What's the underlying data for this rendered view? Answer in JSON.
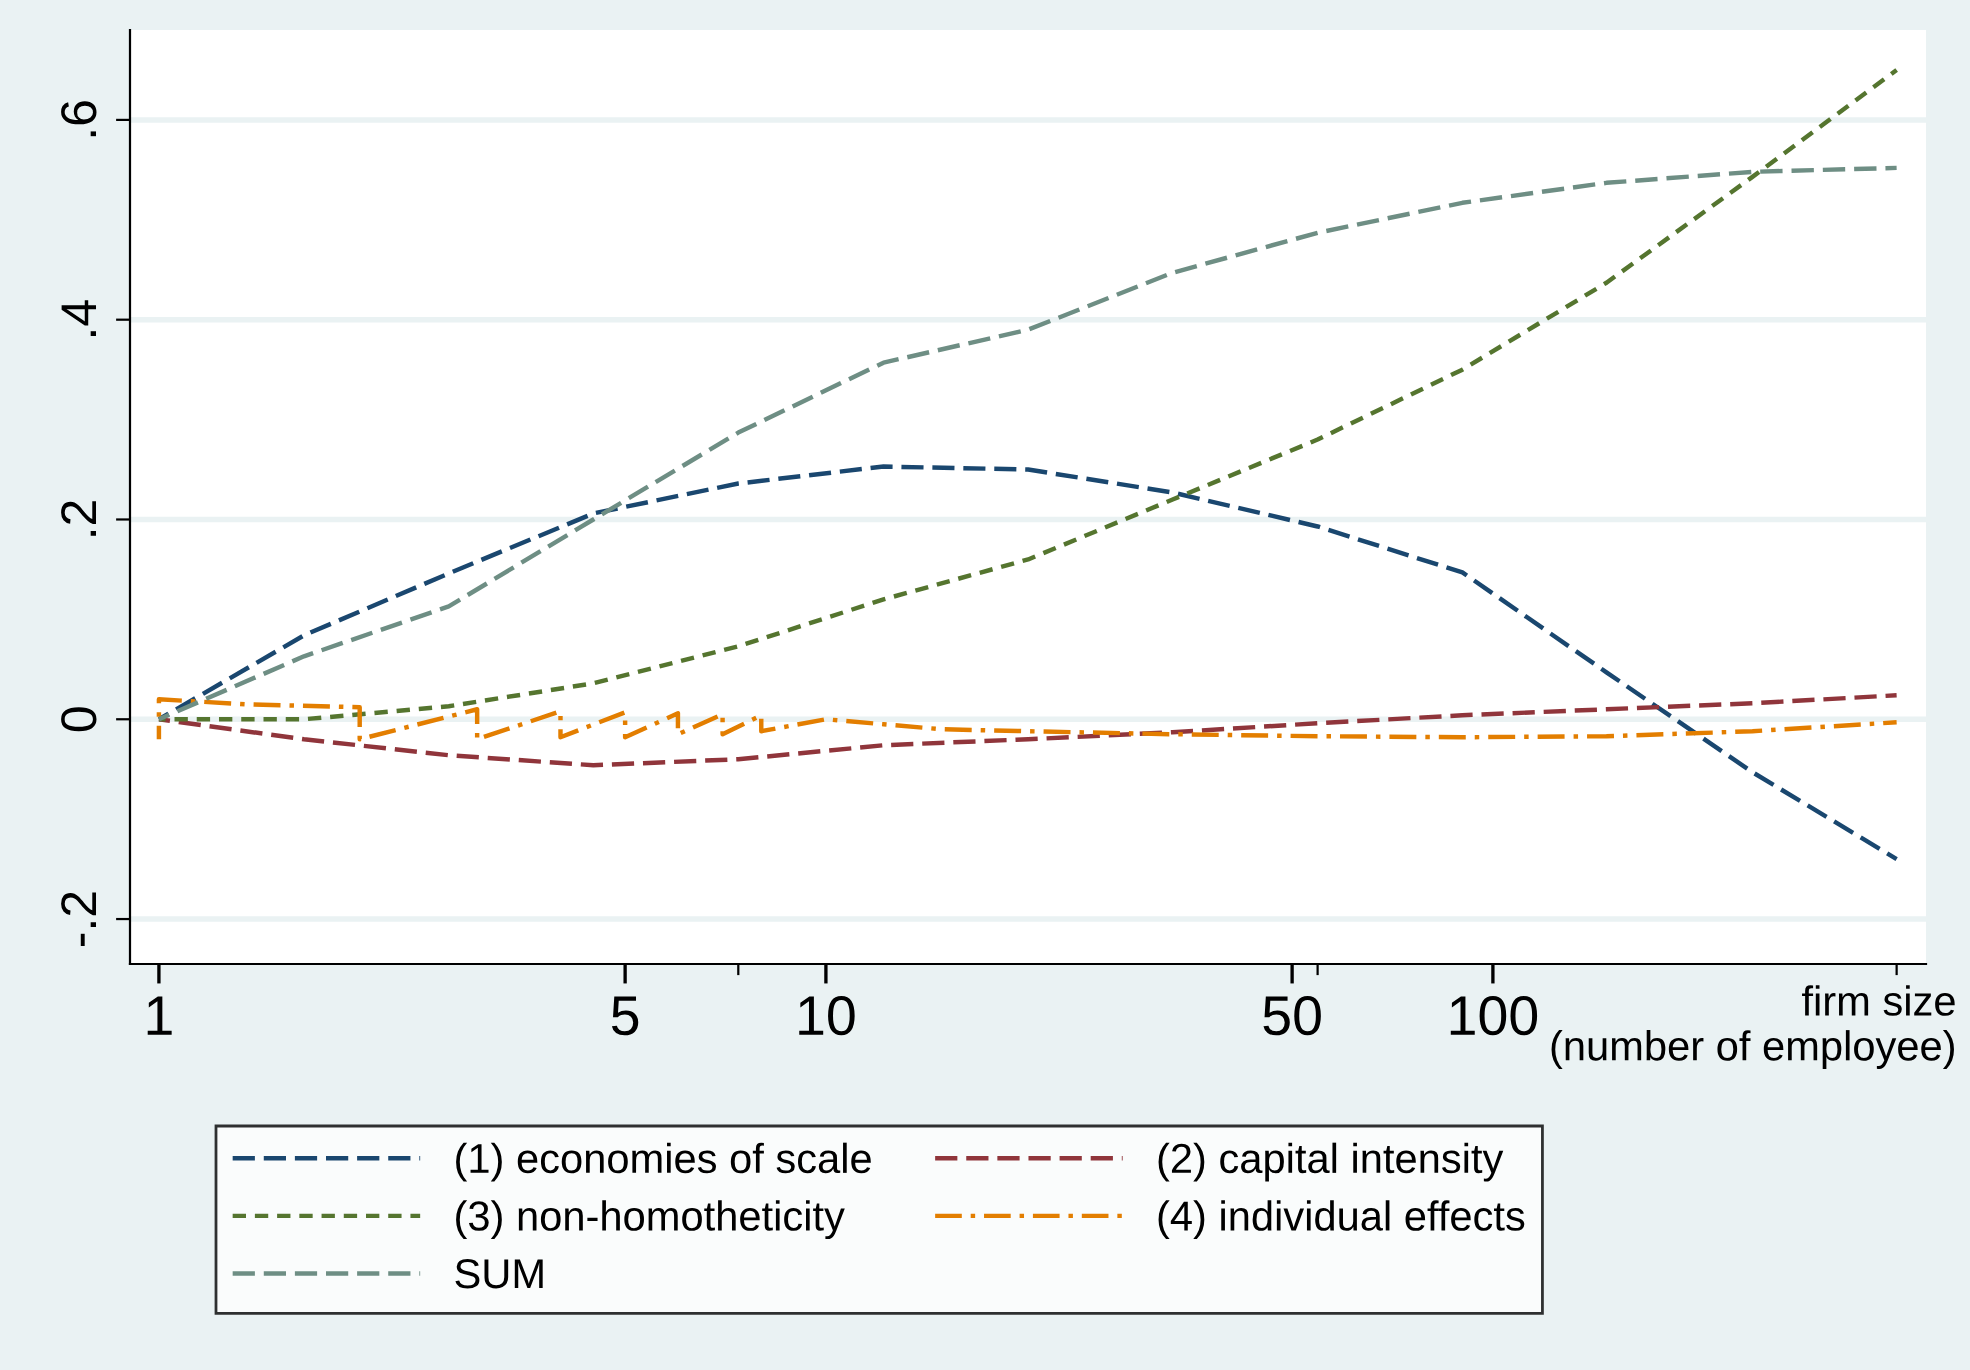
{
  "chart_data": {
    "type": "line",
    "xlabel": "firm size\n(number of employee)",
    "log": "x",
    "xlim": [
      0.905,
      446
    ],
    "ylim": [
      -0.245,
      0.69
    ],
    "xticks": [
      {
        "value": 1,
        "label": "1"
      },
      {
        "value": 5,
        "label": "5"
      },
      {
        "value": 7.39,
        "label": null
      },
      {
        "value": 10,
        "label": "10"
      },
      {
        "value": 50,
        "label": "50"
      },
      {
        "value": 54.6,
        "label": null
      },
      {
        "value": 100,
        "label": "100"
      },
      {
        "value": 403,
        "label": null
      }
    ],
    "yticks": [
      {
        "value": -0.2,
        "label": "-.2"
      },
      {
        "value": 0,
        "label": "0"
      },
      {
        "value": 0.2,
        "label": ".2"
      },
      {
        "value": 0.4,
        "label": ".4"
      },
      {
        "value": 0.6,
        "label": ".6"
      }
    ],
    "grid": "y",
    "legend": "bottom",
    "marker": "none",
    "series": [
      {
        "name": "(1) economies of scale",
        "color": "#1a476f",
        "line_style": "dashed",
        "x": [
          1,
          1.65,
          2.72,
          4.48,
          7.39,
          12.2,
          20.1,
          33.1,
          54.6,
          90,
          148,
          245,
          403
        ],
        "values": [
          0,
          0.084,
          0.146,
          0.206,
          0.236,
          0.253,
          0.25,
          0.227,
          0.193,
          0.147,
          0.047,
          -0.053,
          -0.14
        ]
      },
      {
        "name": "(2) capital intensity",
        "color": "#90353b",
        "line_style": "dashed",
        "x": [
          1,
          1.65,
          2.72,
          4.48,
          7.39,
          12.2,
          20.1,
          33.1,
          54.6,
          90,
          148,
          245,
          403
        ],
        "values": [
          0,
          -0.02,
          -0.036,
          -0.046,
          -0.04,
          -0.026,
          -0.02,
          -0.013,
          -0.004,
          0.004,
          0.01,
          0.016,
          0.024
        ]
      },
      {
        "name": "(3) non-homotheticity",
        "color": "#55752f",
        "line_style": "dotted",
        "x": [
          1,
          1.65,
          2.72,
          4.48,
          7.39,
          12.2,
          20.1,
          33.1,
          54.6,
          90,
          148,
          245,
          403
        ],
        "values": [
          0,
          0,
          0.013,
          0.036,
          0.073,
          0.12,
          0.16,
          0.22,
          0.28,
          0.35,
          0.437,
          0.543,
          0.65
        ]
      },
      {
        "name": "(4) individual effects",
        "color": "#e37e00",
        "line_style": "dashdot",
        "x": [
          1,
          1,
          1.35,
          2,
          2,
          3,
          3,
          4,
          4,
          5,
          5,
          6,
          6,
          7,
          7,
          8,
          8,
          10,
          12.2,
          14.9,
          20.1,
          33.1,
          54.6,
          90,
          148,
          245,
          403
        ],
        "values": [
          -0.02,
          0.02,
          0.015,
          0.012,
          -0.02,
          0.01,
          -0.02,
          0.008,
          -0.018,
          0.007,
          -0.018,
          0.006,
          -0.015,
          0.005,
          -0.015,
          0.004,
          -0.012,
          0,
          -0.005,
          -0.01,
          -0.012,
          -0.015,
          -0.017,
          -0.018,
          -0.017,
          -0.012,
          -0.003
        ]
      },
      {
        "name": "SUM",
        "color": "#6e8e84",
        "line_style": "dashed",
        "x": [
          1,
          1.65,
          2.72,
          4.48,
          7.39,
          12.2,
          20.1,
          33.1,
          54.6,
          90,
          148,
          245,
          403
        ],
        "values": [
          0,
          0.063,
          0.113,
          0.2,
          0.287,
          0.357,
          0.39,
          0.447,
          0.487,
          0.517,
          0.537,
          0.548,
          0.552
        ]
      }
    ]
  }
}
